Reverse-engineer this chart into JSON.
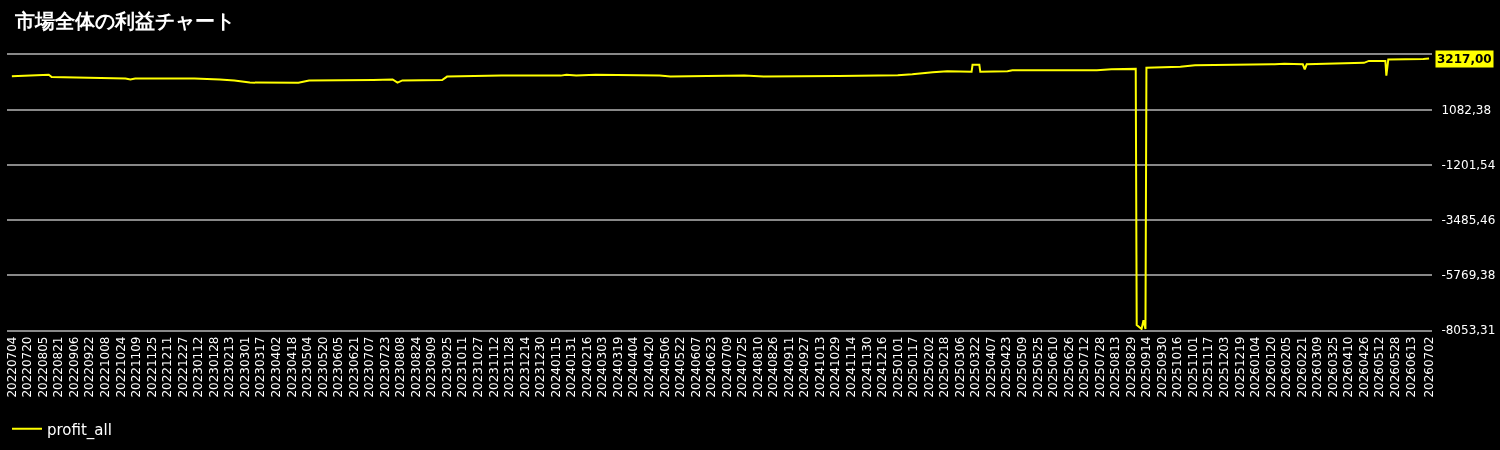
{
  "chart_data": {
    "type": "line",
    "title": "市場全体の利益チャート",
    "annotations": [
      {
        "text": "3217,00",
        "x": "2026-07-02",
        "y": 3217
      }
    ],
    "x": [
      "2022-07-04",
      "2022-08-11",
      "2022-08-14",
      "2022-10-29",
      "2022-11-03",
      "2022-11-08",
      "2023-01-08",
      "2023-02-03",
      "2023-02-18",
      "2023-03-06",
      "2023-04-25",
      "2023-05-06",
      "2023-07-11",
      "2023-07-31",
      "2023-08-05",
      "2023-08-10",
      "2023-09-20",
      "2023-09-25",
      "2023-11-20",
      "2024-01-20",
      "2024-01-26",
      "2024-02-05",
      "2024-02-25",
      "2024-05-01",
      "2024-05-12",
      "2024-07-27",
      "2024-08-16",
      "2024-11-01",
      "2025-01-01",
      "2025-01-16",
      "2025-02-06",
      "2025-02-21",
      "2025-03-18",
      "2025-03-19",
      "2025-03-26",
      "2025-03-27",
      "2025-04-24",
      "2025-04-29",
      "2025-07-25",
      "2025-08-09",
      "2025-09-03",
      "2025-09-04",
      "2025-09-09",
      "2025-09-11",
      "2025-09-13",
      "2025-09-14",
      "2025-10-19",
      "2025-10-29",
      "2025-11-03",
      "2026-01-24",
      "2026-02-03",
      "2026-02-22",
      "2026-02-24",
      "2026-02-26",
      "2026-04-26",
      "2026-05-01",
      "2026-05-18",
      "2026-05-19",
      "2026-05-21",
      "2026-06-26",
      "2026-07-02"
    ],
    "series": [
      {
        "name": "profit_all",
        "color": "#ffff00",
        "values": [
          2480,
          2550,
          2450,
          2390,
          2350,
          2390,
          2390,
          2350,
          2310,
          2220,
          2210,
          2310,
          2330,
          2350,
          2220,
          2310,
          2330,
          2470,
          2510,
          2510,
          2550,
          2510,
          2550,
          2510,
          2470,
          2510,
          2470,
          2490,
          2530,
          2570,
          2650,
          2690,
          2670,
          2960,
          2960,
          2670,
          2690,
          2730,
          2730,
          2770,
          2790,
          -7850,
          -8010,
          -7650,
          -8010,
          2840,
          2880,
          2920,
          2940,
          2980,
          3000,
          2980,
          2770,
          2980,
          3040,
          3120,
          3120,
          2510,
          3180,
          3200,
          3217
        ]
      }
    ],
    "xlim": [
      "2022-06-29",
      "2026-07-05"
    ],
    "xticks": [
      {
        "value": "2022-07-04",
        "label": "20220704"
      },
      {
        "value": "2022-07-20",
        "label": "20220720"
      },
      {
        "value": "2022-08-05",
        "label": "20220805"
      },
      {
        "value": "2022-08-21",
        "label": "20220821"
      },
      {
        "value": "2022-09-06",
        "label": "20220906"
      },
      {
        "value": "2022-09-22",
        "label": "20220922"
      },
      {
        "value": "2022-10-08",
        "label": "20221008"
      },
      {
        "value": "2022-10-24",
        "label": "20221024"
      },
      {
        "value": "2022-11-09",
        "label": "20221109"
      },
      {
        "value": "2022-11-25",
        "label": "20221125"
      },
      {
        "value": "2022-12-11",
        "label": "20221211"
      },
      {
        "value": "2022-12-27",
        "label": "20221227"
      },
      {
        "value": "2023-01-12",
        "label": "20230112"
      },
      {
        "value": "2023-01-28",
        "label": "20230128"
      },
      {
        "value": "2023-02-13",
        "label": "20230213"
      },
      {
        "value": "2023-03-01",
        "label": "20230301"
      },
      {
        "value": "2023-03-17",
        "label": "20230317"
      },
      {
        "value": "2023-04-02",
        "label": "20230402"
      },
      {
        "value": "2023-04-18",
        "label": "20230418"
      },
      {
        "value": "2023-05-04",
        "label": "20230504"
      },
      {
        "value": "2023-05-20",
        "label": "20230520"
      },
      {
        "value": "2023-06-05",
        "label": "20230605"
      },
      {
        "value": "2023-06-21",
        "label": "20230621"
      },
      {
        "value": "2023-07-07",
        "label": "20230707"
      },
      {
        "value": "2023-07-23",
        "label": "20230723"
      },
      {
        "value": "2023-08-08",
        "label": "20230808"
      },
      {
        "value": "2023-08-24",
        "label": "20230824"
      },
      {
        "value": "2023-09-09",
        "label": "20230909"
      },
      {
        "value": "2023-09-25",
        "label": "20230925"
      },
      {
        "value": "2023-10-11",
        "label": "20231011"
      },
      {
        "value": "2023-10-27",
        "label": "20231027"
      },
      {
        "value": "2023-11-12",
        "label": "20231112"
      },
      {
        "value": "2023-11-28",
        "label": "20231128"
      },
      {
        "value": "2023-12-14",
        "label": "20231214"
      },
      {
        "value": "2023-12-30",
        "label": "20231230"
      },
      {
        "value": "2024-01-15",
        "label": "20240115"
      },
      {
        "value": "2024-01-31",
        "label": "20240131"
      },
      {
        "value": "2024-02-16",
        "label": "20240216"
      },
      {
        "value": "2024-03-03",
        "label": "20240303"
      },
      {
        "value": "2024-03-19",
        "label": "20240319"
      },
      {
        "value": "2024-04-04",
        "label": "20240404"
      },
      {
        "value": "2024-04-20",
        "label": "20240420"
      },
      {
        "value": "2024-05-06",
        "label": "20240506"
      },
      {
        "value": "2024-05-22",
        "label": "20240522"
      },
      {
        "value": "2024-06-07",
        "label": "20240607"
      },
      {
        "value": "2024-06-23",
        "label": "20240623"
      },
      {
        "value": "2024-07-09",
        "label": "20240709"
      },
      {
        "value": "2024-07-25",
        "label": "20240725"
      },
      {
        "value": "2024-08-10",
        "label": "20240810"
      },
      {
        "value": "2024-08-26",
        "label": "20240826"
      },
      {
        "value": "2024-09-11",
        "label": "20240911"
      },
      {
        "value": "2024-09-27",
        "label": "20240927"
      },
      {
        "value": "2024-10-13",
        "label": "20241013"
      },
      {
        "value": "2024-10-29",
        "label": "20241029"
      },
      {
        "value": "2024-11-14",
        "label": "20241114"
      },
      {
        "value": "2024-11-30",
        "label": "20241130"
      },
      {
        "value": "2024-12-16",
        "label": "20241216"
      },
      {
        "value": "2025-01-01",
        "label": "20250101"
      },
      {
        "value": "2025-01-17",
        "label": "20250117"
      },
      {
        "value": "2025-02-02",
        "label": "20250202"
      },
      {
        "value": "2025-02-18",
        "label": "20250218"
      },
      {
        "value": "2025-03-06",
        "label": "20250306"
      },
      {
        "value": "2025-03-22",
        "label": "20250322"
      },
      {
        "value": "2025-04-07",
        "label": "20250407"
      },
      {
        "value": "2025-04-23",
        "label": "20250423"
      },
      {
        "value": "2025-05-09",
        "label": "20250509"
      },
      {
        "value": "2025-05-25",
        "label": "20250525"
      },
      {
        "value": "2025-06-10",
        "label": "20250610"
      },
      {
        "value": "2025-06-26",
        "label": "20250626"
      },
      {
        "value": "2025-07-12",
        "label": "20250712"
      },
      {
        "value": "2025-07-28",
        "label": "20250728"
      },
      {
        "value": "2025-08-13",
        "label": "20250813"
      },
      {
        "value": "2025-08-29",
        "label": "20250829"
      },
      {
        "value": "2025-09-14",
        "label": "20250914"
      },
      {
        "value": "2025-09-30",
        "label": "20250930"
      },
      {
        "value": "2025-10-16",
        "label": "20251016"
      },
      {
        "value": "2025-11-01",
        "label": "20251101"
      },
      {
        "value": "2025-11-17",
        "label": "20251117"
      },
      {
        "value": "2025-12-03",
        "label": "20251203"
      },
      {
        "value": "2025-12-19",
        "label": "20251219"
      },
      {
        "value": "2026-01-04",
        "label": "20260104"
      },
      {
        "value": "2026-01-20",
        "label": "20260120"
      },
      {
        "value": "2026-02-05",
        "label": "20260205"
      },
      {
        "value": "2026-02-21",
        "label": "20260221"
      },
      {
        "value": "2026-03-09",
        "label": "20260309"
      },
      {
        "value": "2026-03-25",
        "label": "20260325"
      },
      {
        "value": "2026-04-10",
        "label": "20260410"
      },
      {
        "value": "2026-04-26",
        "label": "20260426"
      },
      {
        "value": "2026-05-12",
        "label": "20260512"
      },
      {
        "value": "2026-05-28",
        "label": "20260528"
      },
      {
        "value": "2026-06-13",
        "label": "20260613"
      },
      {
        "value": "2026-07-02",
        "label": "20260702"
      }
    ],
    "ylim": [
      -8053.31,
      3366.3
    ],
    "yticks": [
      {
        "value": -8053.31,
        "label": "-8053,31"
      },
      {
        "value": -5769.38,
        "label": "-5769,38"
      },
      {
        "value": -3485.46,
        "label": "-3485,46"
      },
      {
        "value": -1201.54,
        "label": "-1201,54"
      },
      {
        "value": 1082.38,
        "label": "1082,38"
      },
      {
        "value": 3366.3,
        "label": null
      }
    ],
    "grid": "y",
    "legend": "bottom left",
    "marker": "none",
    "line_style": "solid"
  }
}
